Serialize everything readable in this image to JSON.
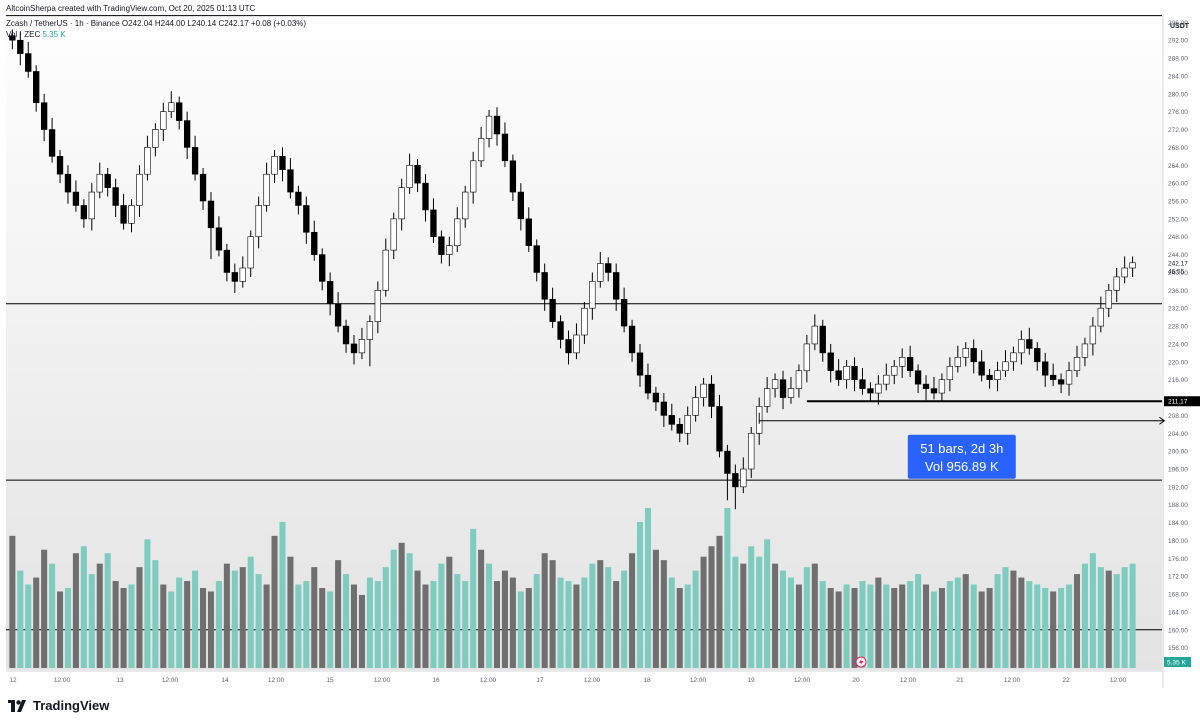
{
  "header": {
    "credit": "AltcoinSherpa created with TradingView.com, Oct 20, 2025 01:13 UTC",
    "symbol": "Zcash / TetherUS · 1h · Binance",
    "ohlc": "O242.04 H244.00 L240.14 C242.17 +0.08 (+0.03%)",
    "volume_label": "Vol · ZEC",
    "volume_value": "5.35 K"
  },
  "colors": {
    "up": "#ffffff",
    "down": "#000000",
    "candle_outline": "#000000",
    "volume_up": "#7ecbc0",
    "volume_down": "#6f6f6f",
    "measure_box": "#2962ff",
    "last_price_label": "#000000",
    "volume_badge": "#26a69a"
  },
  "chart_data": {
    "type": "candlestick",
    "currency": "USDT",
    "y_range": [
      151,
      301
    ],
    "y_ticks": [
      156.0,
      160.0,
      164.0,
      168.0,
      172.0,
      176.0,
      180.0,
      184.0,
      188.0,
      192.0,
      196.0,
      200.0,
      204.0,
      208.0,
      212.0,
      216.0,
      220.0,
      224.0,
      228.0,
      232.0,
      236.0,
      240.0,
      244.0,
      248.0,
      252.0,
      256.0,
      260.0,
      264.0,
      268.0,
      272.0,
      276.0,
      280.0,
      284.0,
      288.0,
      292.0,
      296.0
    ],
    "y_ticks_hidden": [
      212.0
    ],
    "x_labels": [
      "12",
      "12:00",
      "13",
      "12:00",
      "14",
      "12:00",
      "15",
      "12:00",
      "16",
      "12:00",
      "17",
      "12:00",
      "18",
      "12:00",
      "19",
      "12:00",
      "20",
      "12:00",
      "21",
      "12:00",
      "22",
      "12:00"
    ],
    "price_series": [
      292,
      289,
      285,
      278,
      272,
      266,
      262,
      258,
      255,
      252,
      258,
      262,
      259,
      255,
      251,
      255,
      262,
      268,
      272,
      276,
      278,
      274,
      268,
      262,
      256,
      250,
      245,
      240,
      238,
      241,
      248,
      255,
      262,
      266,
      263,
      258,
      255,
      249,
      244,
      238,
      233,
      228,
      224,
      222,
      225,
      229,
      236,
      245,
      252,
      259,
      264,
      260,
      254,
      248,
      244,
      246,
      252,
      258,
      265,
      270,
      275,
      271,
      265,
      258,
      252,
      246,
      240,
      234,
      229,
      225,
      222,
      226,
      232,
      238,
      242,
      240,
      234,
      228,
      222,
      217,
      213,
      211,
      208,
      206,
      204,
      208,
      212,
      215,
      210,
      200,
      195,
      192,
      196,
      204,
      210,
      214,
      216,
      212,
      214,
      218,
      224,
      228,
      222,
      218,
      216,
      219,
      216,
      214,
      213,
      215,
      217,
      219,
      221,
      218,
      215,
      214,
      213,
      216,
      219,
      221,
      223,
      220,
      217,
      216,
      218,
      220,
      222,
      225,
      223,
      220,
      217,
      216,
      215,
      218,
      221,
      224,
      228,
      232,
      236,
      239,
      241,
      242.17
    ],
    "price_lows": [
      {
        "i": 25,
        "low": 243
      },
      {
        "i": 45,
        "low": 219
      },
      {
        "i": 90,
        "low": 189
      },
      {
        "i": 91,
        "low": 187
      }
    ],
    "volume_series": [
      190,
      140,
      120,
      130,
      170,
      150,
      110,
      115,
      165,
      175,
      135,
      150,
      165,
      125,
      115,
      120,
      145,
      185,
      155,
      120,
      110,
      130,
      125,
      140,
      115,
      110,
      125,
      150,
      140,
      145,
      160,
      135,
      120,
      190,
      210,
      160,
      120,
      125,
      145,
      115,
      110,
      155,
      135,
      120,
      105,
      130,
      125,
      145,
      170,
      180,
      165,
      140,
      120,
      125,
      150,
      160,
      135,
      125,
      200,
      170,
      150,
      125,
      140,
      130,
      110,
      115,
      135,
      165,
      155,
      130,
      125,
      120,
      130,
      150,
      155,
      145,
      125,
      140,
      165,
      210,
      230,
      170,
      155,
      130,
      115,
      120,
      140,
      160,
      175,
      190,
      230,
      160,
      150,
      175,
      160,
      185,
      150,
      140,
      130,
      120,
      145,
      150,
      125,
      115,
      110,
      120,
      115,
      125,
      120,
      130,
      120,
      115,
      120,
      125,
      135,
      120,
      110,
      115,
      125,
      130,
      135,
      120,
      110,
      115,
      135,
      145,
      140,
      130,
      125,
      120,
      115,
      110,
      115,
      120,
      135,
      150,
      165,
      145,
      140,
      135,
      145,
      150
    ],
    "volume_direction": [
      -1,
      1,
      1,
      -1,
      -1,
      1,
      -1,
      1,
      -1,
      1,
      1,
      -1,
      1,
      -1,
      -1,
      1,
      -1,
      1,
      1,
      -1,
      1,
      1,
      -1,
      1,
      -1,
      -1,
      1,
      -1,
      1,
      -1,
      1,
      1,
      -1,
      -1,
      1,
      -1,
      1,
      1,
      -1,
      -1,
      1,
      -1,
      1,
      -1,
      -1,
      1,
      1,
      1,
      1,
      -1,
      1,
      -1,
      -1,
      1,
      1,
      -1,
      1,
      1,
      1,
      -1,
      1,
      -1,
      -1,
      -1,
      1,
      -1,
      1,
      -1,
      -1,
      1,
      1,
      -1,
      1,
      1,
      -1,
      1,
      -1,
      1,
      -1,
      1,
      1,
      -1,
      -1,
      1,
      -1,
      1,
      1,
      -1,
      -1,
      -1,
      1,
      1,
      -1,
      1,
      1,
      1,
      -1,
      1,
      1,
      -1,
      1,
      -1,
      1,
      -1,
      -1,
      1,
      -1,
      1,
      1,
      -1,
      1,
      -1,
      -1,
      1,
      1,
      -1,
      1,
      -1,
      1,
      1,
      -1,
      1,
      -1,
      -1,
      1,
      1,
      -1,
      -1,
      1,
      1,
      1,
      -1,
      1,
      1,
      -1,
      1,
      1,
      1,
      -1,
      1,
      1,
      1
    ],
    "horizontal_levels": [
      {
        "price": 297.5,
        "width": 1
      },
      {
        "price": 233.0,
        "width": 1
      },
      {
        "price": 193.5,
        "width": 1
      },
      {
        "price": 160.0,
        "width": 1
      }
    ],
    "support_segment": {
      "price": 211.17,
      "from_index": 100,
      "label": "211.17"
    },
    "last_price": {
      "price": 242.17,
      "label": "242.17",
      "countdown": "46:55"
    },
    "measure": {
      "from_index": 94,
      "to_index": 145,
      "price": 206.8,
      "label_line1": "51 bars, 2d 3h",
      "label_line2": "Vol 956.89 K"
    },
    "volume_badge": "5.35 K"
  },
  "footer": {
    "brand": "TradingView"
  }
}
